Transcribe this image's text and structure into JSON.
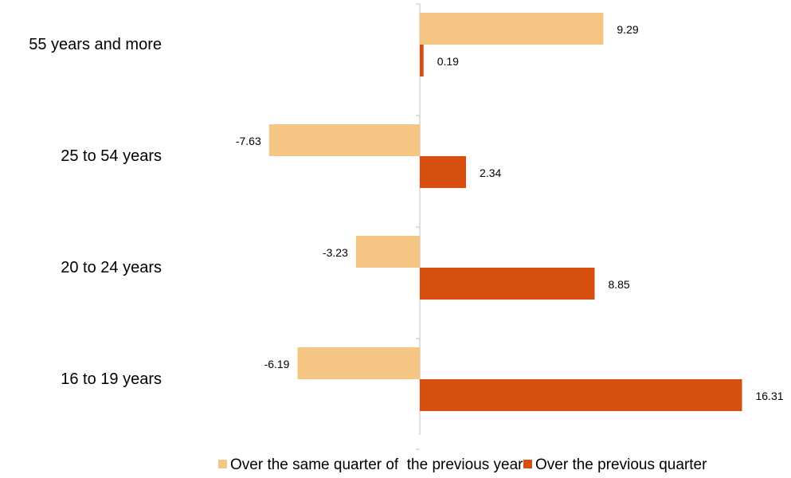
{
  "colors": {
    "previous_year": "#f5c584",
    "previous_quarter": "#d64f0e",
    "axis": "#bfbfbf"
  },
  "chart_data": {
    "type": "bar",
    "orientation": "horizontal",
    "categories": [
      "55 years and more",
      "25 to 54 years",
      "20 to 24 years",
      "16 to 19 years"
    ],
    "series": [
      {
        "name": "Over the same quarter of  the previous year",
        "values": [
          9.29,
          -7.63,
          -3.23,
          -6.19
        ]
      },
      {
        "name": "Over the previous quarter",
        "values": [
          0.19,
          2.34,
          8.85,
          16.31
        ]
      }
    ],
    "value_labels": [
      [
        "9.29",
        "-7.63",
        "-3.23",
        "-6.19"
      ],
      [
        "0.19",
        "2.34",
        "8.85",
        "16.31"
      ]
    ],
    "xlim": [
      -8.43,
      18.3
    ],
    "grid": false,
    "legend_position": "bottom"
  }
}
